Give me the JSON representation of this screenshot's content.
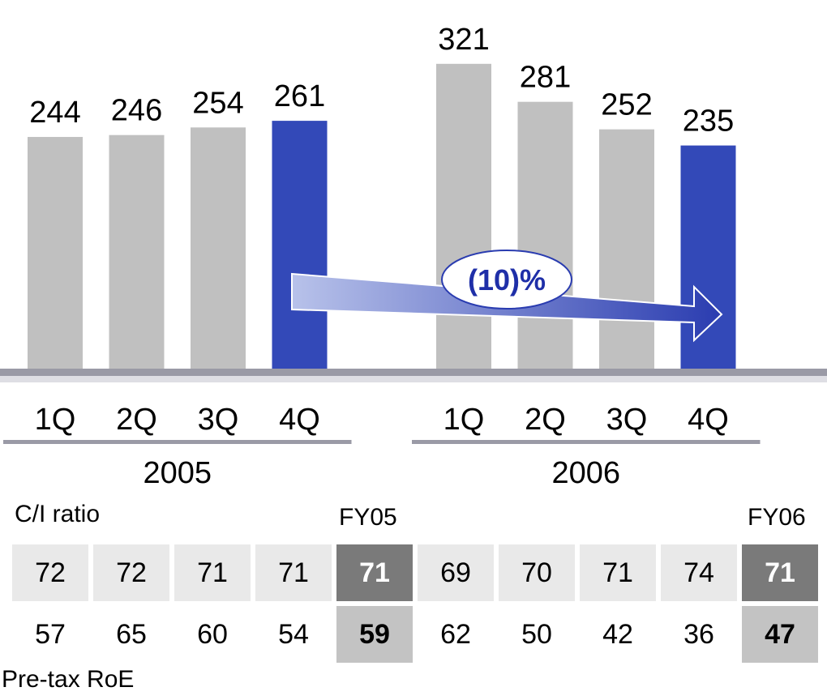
{
  "chart_data": {
    "type": "bar",
    "groups": [
      {
        "year": "2005",
        "categories": [
          "1Q",
          "2Q",
          "3Q",
          "4Q"
        ],
        "values": [
          244,
          246,
          254,
          261
        ]
      },
      {
        "year": "2006",
        "categories": [
          "1Q",
          "2Q",
          "3Q",
          "4Q"
        ],
        "values": [
          321,
          281,
          252,
          235
        ]
      }
    ],
    "highlight_color": "#3349b8",
    "bar_color": "#c0c0c0",
    "annotation": "(10)%"
  },
  "metrics": {
    "ci_label": "C/I ratio",
    "roe_label": "Pre-tax RoE",
    "fy05_label": "FY05",
    "fy06_label": "FY06",
    "ci_values": [
      "72",
      "72",
      "71",
      "71",
      "71",
      "69",
      "70",
      "71",
      "74",
      "71"
    ],
    "roe_values": [
      "57",
      "65",
      "60",
      "54",
      "59",
      "62",
      "50",
      "42",
      "36",
      "47"
    ]
  }
}
